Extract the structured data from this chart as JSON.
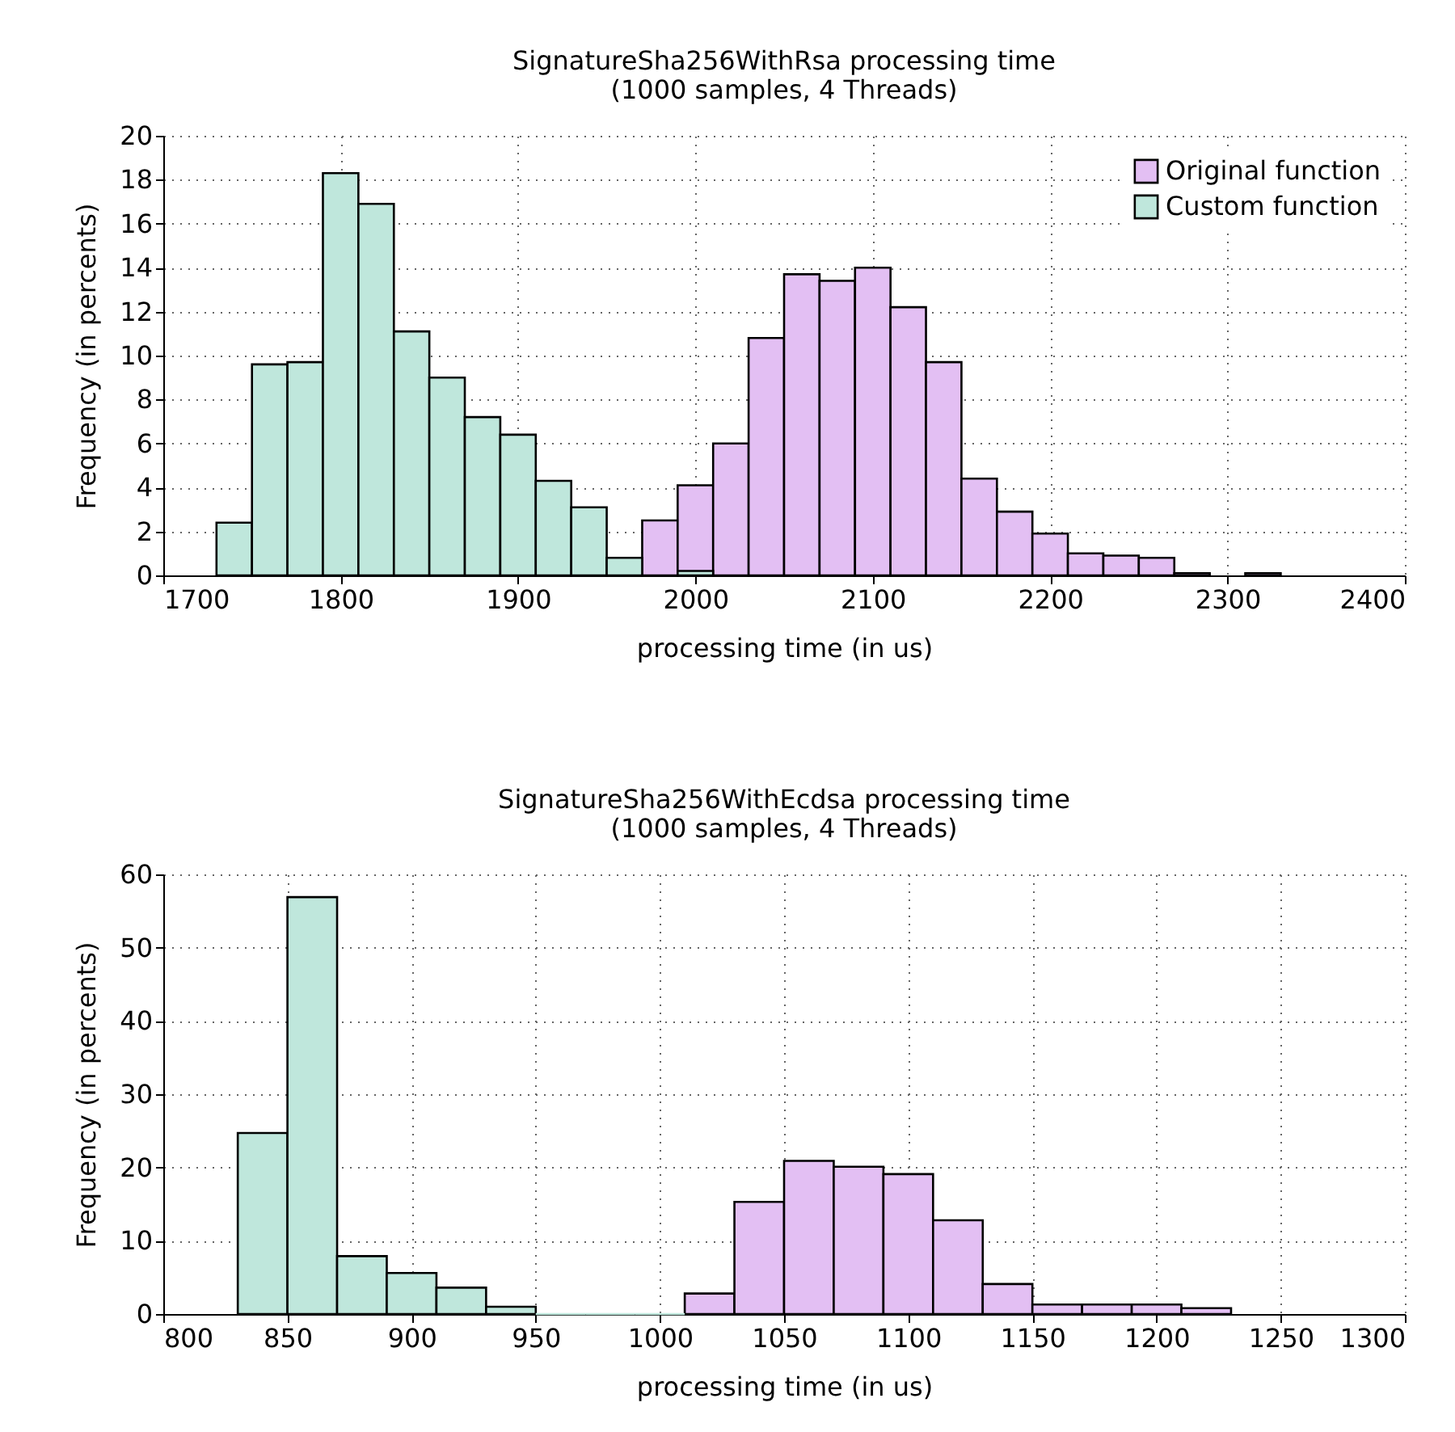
{
  "chart_data": [
    {
      "type": "histogram",
      "title": "SignatureSha256WithRsa processing time\n(1000 samples, 4 Threads)",
      "xlabel": "processing time (in us)",
      "ylabel": "Frequency (in percents)",
      "bins": [
        1730,
        1750,
        1770,
        1790,
        1810,
        1830,
        1850,
        1870,
        1890,
        1910,
        1930,
        1950,
        1970,
        1990,
        2010,
        2030,
        2050,
        2070,
        2090,
        2110,
        2130,
        2150,
        2170,
        2190,
        2210,
        2230,
        2250,
        2270,
        2290,
        2310,
        2330
      ],
      "series": [
        {
          "name": "Original function",
          "color": "#e3bff3",
          "values": [
            null,
            null,
            null,
            null,
            null,
            null,
            null,
            null,
            null,
            null,
            null,
            null,
            2.5,
            4.1,
            6.0,
            10.8,
            13.7,
            13.4,
            14.0,
            12.2,
            9.7,
            4.4,
            2.9,
            1.9,
            1.0,
            0.9,
            0.8,
            0.1,
            null,
            0.1
          ]
        },
        {
          "name": "Custom function",
          "color": "#bfe7dc",
          "values": [
            2.4,
            9.6,
            9.7,
            18.3,
            16.9,
            11.1,
            9.0,
            7.2,
            6.4,
            4.3,
            3.1,
            0.8,
            null,
            0.2,
            null,
            null,
            null,
            null,
            null,
            null,
            null,
            null,
            null,
            null,
            null,
            null,
            null,
            null,
            null,
            null
          ]
        }
      ],
      "xlim": [
        1700,
        2400
      ],
      "xticks": [
        1700,
        1800,
        1900,
        2000,
        2100,
        2200,
        2300,
        2400
      ],
      "ylim": [
        0,
        20
      ],
      "yticks": [
        0,
        2,
        4,
        6,
        8,
        10,
        12,
        14,
        16,
        18,
        20
      ],
      "grid": true,
      "legend": "top right"
    },
    {
      "type": "histogram",
      "title": "SignatureSha256WithEcdsa processing time\n(1000 samples, 4 Threads)",
      "xlabel": "processing time (in us)",
      "ylabel": "Frequency (in percents)",
      "bins": [
        830,
        850,
        870,
        890,
        910,
        930,
        950,
        970,
        990,
        1010,
        1030,
        1050,
        1070,
        1090,
        1110,
        1130,
        1150,
        1170,
        1190,
        1210,
        1230
      ],
      "series": [
        {
          "name": "Original function",
          "color": "#e3bff3",
          "values": [
            null,
            null,
            null,
            null,
            null,
            null,
            null,
            null,
            null,
            2.8,
            15.3,
            20.9,
            20.1,
            19.1,
            12.8,
            4.1,
            1.3,
            1.3,
            1.3,
            0.8
          ]
        },
        {
          "name": "Custom function",
          "color": "#bfe7dc",
          "values": [
            24.7,
            56.9,
            7.9,
            5.6,
            3.6,
            1.0,
            0,
            0,
            0,
            null,
            null,
            null,
            null,
            null,
            null,
            null,
            null,
            null,
            null,
            null
          ]
        }
      ],
      "xlim": [
        800,
        1300
      ],
      "xticks": [
        800,
        850,
        900,
        950,
        1000,
        1050,
        1100,
        1150,
        1200,
        1250,
        1300
      ],
      "ylim": [
        0,
        60
      ],
      "yticks": [
        0,
        10,
        20,
        30,
        40,
        50,
        60
      ],
      "grid": true,
      "legend": "top right"
    }
  ]
}
